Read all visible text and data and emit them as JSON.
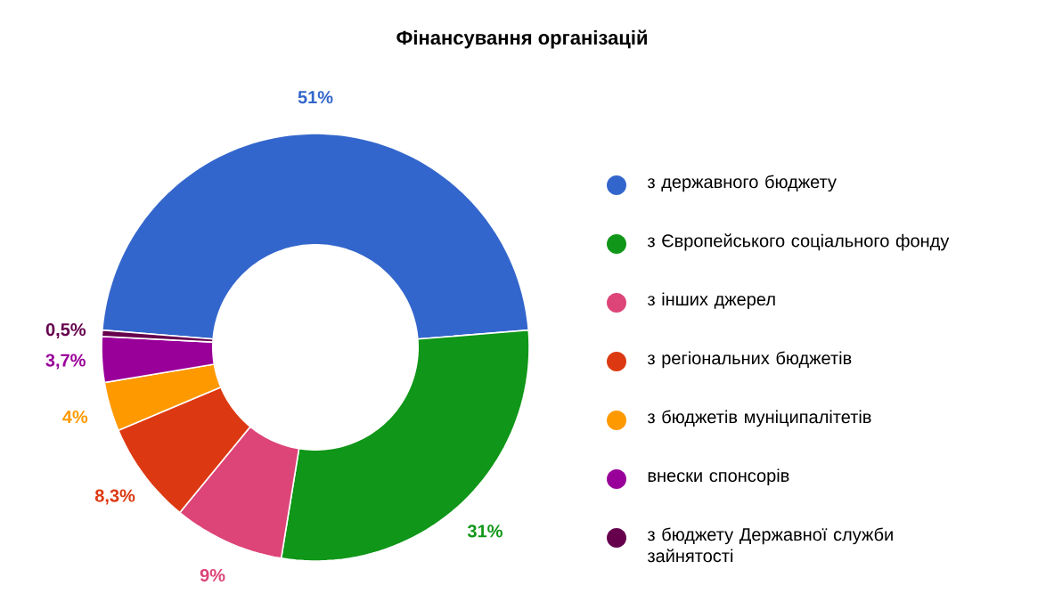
{
  "chart_data": {
    "type": "donut",
    "title": "Фінансування організацій",
    "categories": [
      "з державного бюджету",
      "з Європейського соціального фонду",
      "з інших джерел",
      "з регіональних бюджетів",
      "з бюджетів муніципалітетів",
      "внески спонсорів",
      "з бюджету Державної служби зайнятості"
    ],
    "values": [
      51,
      31,
      9,
      8.3,
      4,
      3.7,
      0.5
    ],
    "value_labels": [
      "51%",
      "31%",
      "9%",
      "8,3%",
      "4%",
      "3,7%",
      "0,5%"
    ],
    "colors": [
      "#3366cc",
      "#109618",
      "#dd4477",
      "#dc3912",
      "#ff9900",
      "#990099",
      "#66004d"
    ],
    "legend": "right"
  }
}
